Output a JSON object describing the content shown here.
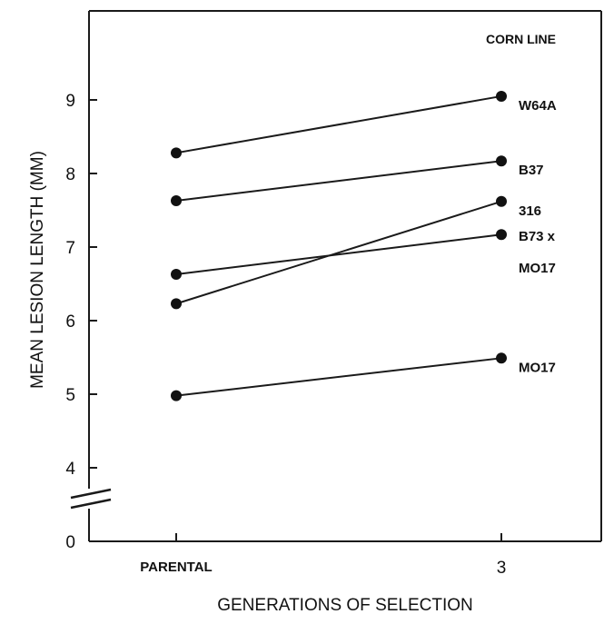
{
  "chart_data": {
    "type": "line",
    "title": "",
    "xlabel": "GENERATIONS OF SELECTION",
    "ylabel": "MEAN LESION LENGTH (MM)",
    "categories": [
      "PARENTAL",
      "3"
    ],
    "yticks": [
      "0",
      "4",
      "5",
      "6",
      "7",
      "8",
      "9"
    ],
    "ylim": [
      4,
      10
    ],
    "axis_break": true,
    "legend_title": "CORN  LINE",
    "label_lines": {
      "W64A": [
        "W64A"
      ],
      "B37": [
        "B37"
      ],
      "316": [
        "316"
      ],
      "B73 x MO17": [
        "B73 x",
        "MO17"
      ],
      "MO17": [
        "MO17"
      ]
    },
    "series": [
      {
        "name": "W64A",
        "values": [
          8.28,
          9.05
        ]
      },
      {
        "name": "B37",
        "values": [
          7.63,
          8.17
        ]
      },
      {
        "name": "316",
        "values": [
          6.23,
          7.62
        ]
      },
      {
        "name": "B73 x MO17",
        "values": [
          6.63,
          7.17
        ]
      },
      {
        "name": "MO17",
        "values": [
          4.98,
          5.49
        ]
      }
    ],
    "colors": {
      "line": "#1a1a1a",
      "marker": "#111111"
    }
  }
}
